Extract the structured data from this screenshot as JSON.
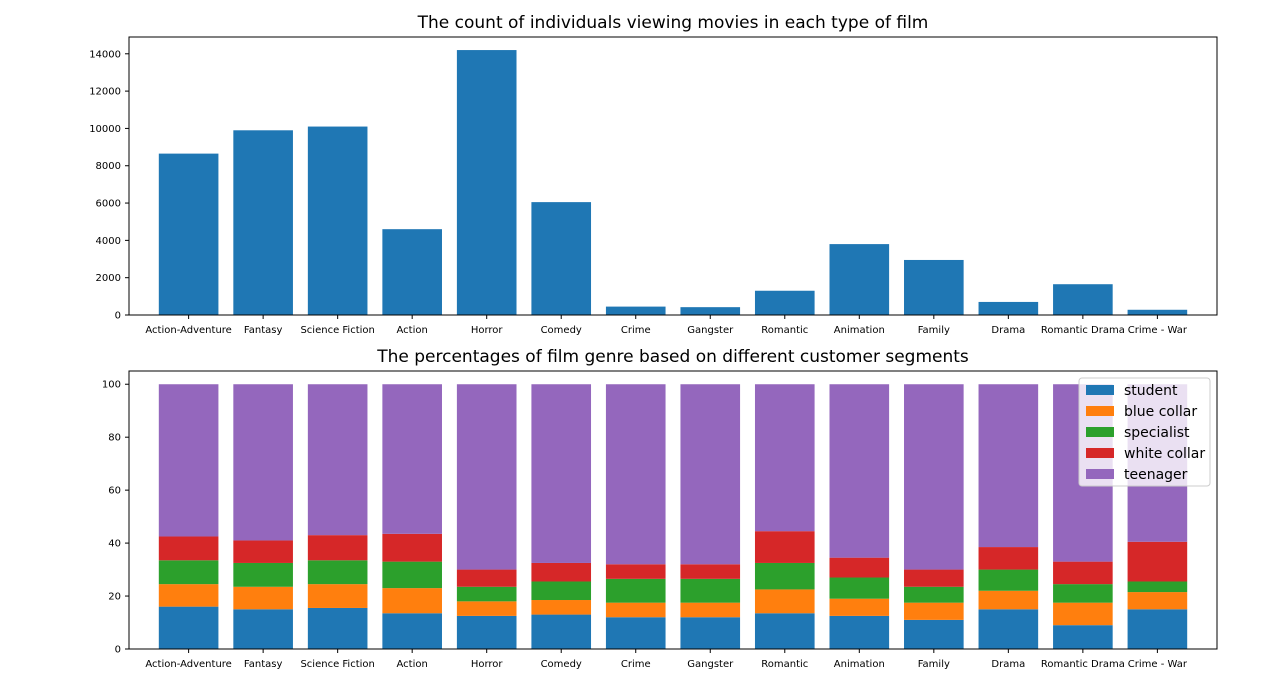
{
  "chart_data": [
    {
      "type": "bar",
      "title": "The count of individuals viewing movies in each type of film",
      "categories": [
        "Action-Adventure",
        "Fantasy",
        "Science Fiction",
        "Action",
        "Horror",
        "Comedy",
        "Crime",
        "Gangster",
        "Romantic",
        "Animation",
        "Family",
        "Drama",
        "Romantic Drama",
        "Crime - War"
      ],
      "values": [
        8650,
        9900,
        10100,
        4600,
        14200,
        6050,
        450,
        420,
        1300,
        3800,
        2950,
        700,
        1650,
        280
      ],
      "xlabel": "",
      "ylabel": "",
      "ylim": [
        0,
        14900
      ],
      "yticks": [
        0,
        2000,
        4000,
        6000,
        8000,
        10000,
        12000,
        14000
      ],
      "colors": [
        "#1f77b4"
      ],
      "grid": false
    },
    {
      "type": "bar",
      "stacked": true,
      "title": "The percentages of film genre based on different customer segments",
      "categories": [
        "Action-Adventure",
        "Fantasy",
        "Science Fiction",
        "Action",
        "Horror",
        "Comedy",
        "Crime",
        "Gangster",
        "Romantic",
        "Animation",
        "Family",
        "Drama",
        "Romantic Drama",
        "Crime - War"
      ],
      "series": [
        {
          "name": "student",
          "color": "#1f77b4",
          "values": [
            16,
            15,
            15.5,
            13.5,
            12.5,
            13,
            12,
            12,
            13.5,
            12.5,
            11,
            15,
            9,
            15
          ]
        },
        {
          "name": "blue collar",
          "color": "#ff7f0e",
          "values": [
            8.5,
            8.5,
            9,
            9.5,
            5.5,
            5.5,
            5.5,
            5.5,
            9,
            6.5,
            6.5,
            7,
            8.5,
            6.5
          ]
        },
        {
          "name": "specialist",
          "color": "#2ca02c",
          "values": [
            9,
            9,
            9,
            10,
            5.5,
            7,
            9,
            9,
            10,
            8,
            6,
            8,
            7,
            4
          ]
        },
        {
          "name": "white collar",
          "color": "#d62728",
          "values": [
            9,
            8.5,
            9.5,
            10.5,
            6.5,
            7,
            5.5,
            5.5,
            12,
            7.5,
            6.5,
            8.5,
            8.5,
            15
          ]
        },
        {
          "name": "teenager",
          "color": "#9467bd",
          "values": [
            57.5,
            59,
            57,
            56.5,
            70,
            67.5,
            68,
            68,
            55.5,
            65.5,
            70,
            61.5,
            67,
            59.5
          ]
        }
      ],
      "xlabel": "",
      "ylabel": "",
      "ylim": [
        0,
        105
      ],
      "yticks": [
        0,
        20,
        40,
        60,
        80,
        100
      ],
      "legend_position": "top-right",
      "grid": false
    }
  ]
}
